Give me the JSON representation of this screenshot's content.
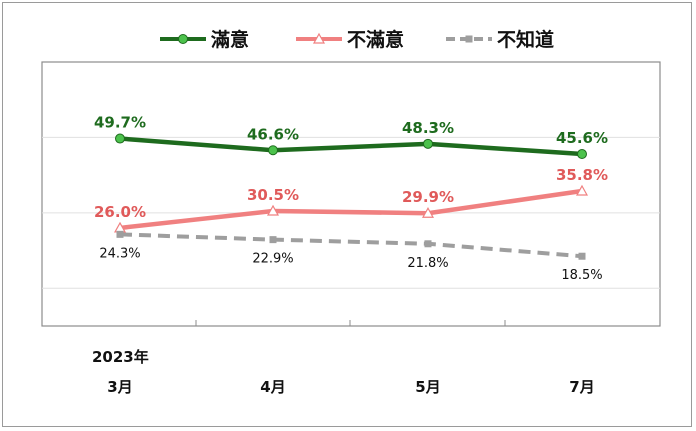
{
  "chart_data": {
    "type": "line",
    "title": "",
    "xlabel": "",
    "ylabel": "",
    "year_label": "2023年",
    "categories": [
      "3月",
      "4月",
      "5月",
      "7月"
    ],
    "ylim": [
      0,
      70
    ],
    "grid": true,
    "legend_position": "top",
    "series": [
      {
        "name": "滿意",
        "values": [
          49.7,
          46.6,
          48.3,
          45.6
        ],
        "labels": [
          "49.7%",
          "46.6%",
          "48.3%",
          "45.6%"
        ],
        "color": "#1e6b1e",
        "marker_color": "#4cc24c",
        "marker": "circle",
        "dash": "solid"
      },
      {
        "name": "不滿意",
        "values": [
          26.0,
          30.5,
          29.9,
          35.8
        ],
        "labels": [
          "26.0%",
          "30.5%",
          "29.9%",
          "35.8%"
        ],
        "color": "#f08080",
        "label_color": "#e05a5a",
        "marker": "triangle",
        "dash": "solid"
      },
      {
        "name": "不知道",
        "values": [
          24.3,
          22.9,
          21.8,
          18.5
        ],
        "labels": [
          "24.3%",
          "22.9%",
          "21.8%",
          "18.5%"
        ],
        "color": "#9e9e9e",
        "marker": "square",
        "dash": "dashed"
      }
    ]
  }
}
